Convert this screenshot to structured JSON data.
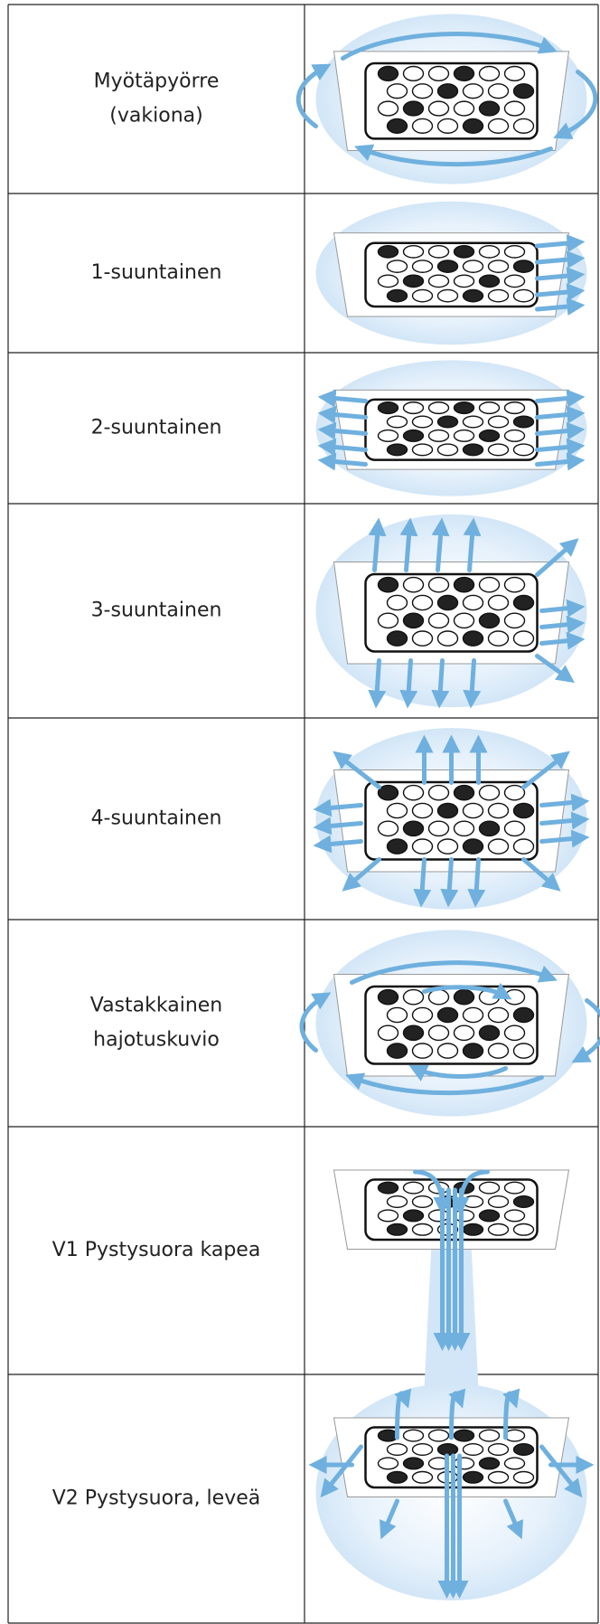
{
  "table": {
    "rows": [
      {
        "label": [
          "Myötäpyörre",
          "(vakiona)"
        ]
      },
      {
        "label": [
          "1-suuntainen"
        ]
      },
      {
        "label": [
          "2-suuntainen"
        ]
      },
      {
        "label": [
          "3-suuntainen"
        ]
      },
      {
        "label": [
          "4-suuntainen"
        ]
      },
      {
        "label": [
          "Vastakkainen",
          "hajotuskuvio"
        ]
      },
      {
        "label": [
          "V1 Pystysuora kapea"
        ]
      },
      {
        "label": [
          "V2 Pystysuora, leveä"
        ]
      }
    ]
  }
}
